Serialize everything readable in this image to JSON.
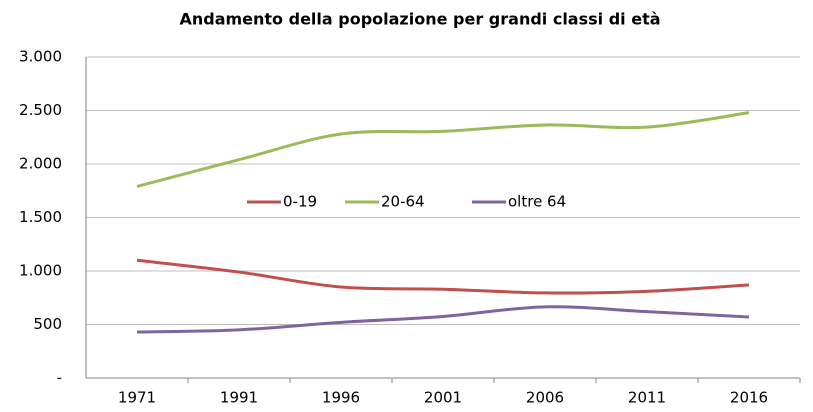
{
  "chart_data": {
    "type": "line",
    "title": "Andamento della popolazione per grandi classi di età",
    "categories": [
      "1971",
      "1991",
      "1996",
      "2001",
      "2006",
      "2011",
      "2016"
    ],
    "series": [
      {
        "name": "0-19",
        "color": "#c0504d",
        "values": [
          1100,
          990,
          850,
          830,
          795,
          810,
          870
        ]
      },
      {
        "name": "20-64",
        "color": "#9bbb59",
        "values": [
          1790,
          2040,
          2280,
          2305,
          2365,
          2345,
          2480
        ]
      },
      {
        "name": "oltre 64",
        "color": "#8064a2",
        "values": [
          430,
          450,
          520,
          575,
          665,
          620,
          570
        ]
      }
    ],
    "ylim": [
      0,
      3000
    ],
    "yticks": [
      {
        "value": 0,
        "label": "-"
      },
      500,
      {
        "value": 1000,
        "label": "1.000"
      },
      {
        "value": 1500,
        "label": "1.500"
      },
      {
        "value": 2000,
        "label": "2.000"
      },
      {
        "value": 2500,
        "label": "2.500"
      },
      {
        "value": 3000,
        "label": "3.000"
      }
    ],
    "grid": true,
    "legend": "center"
  }
}
